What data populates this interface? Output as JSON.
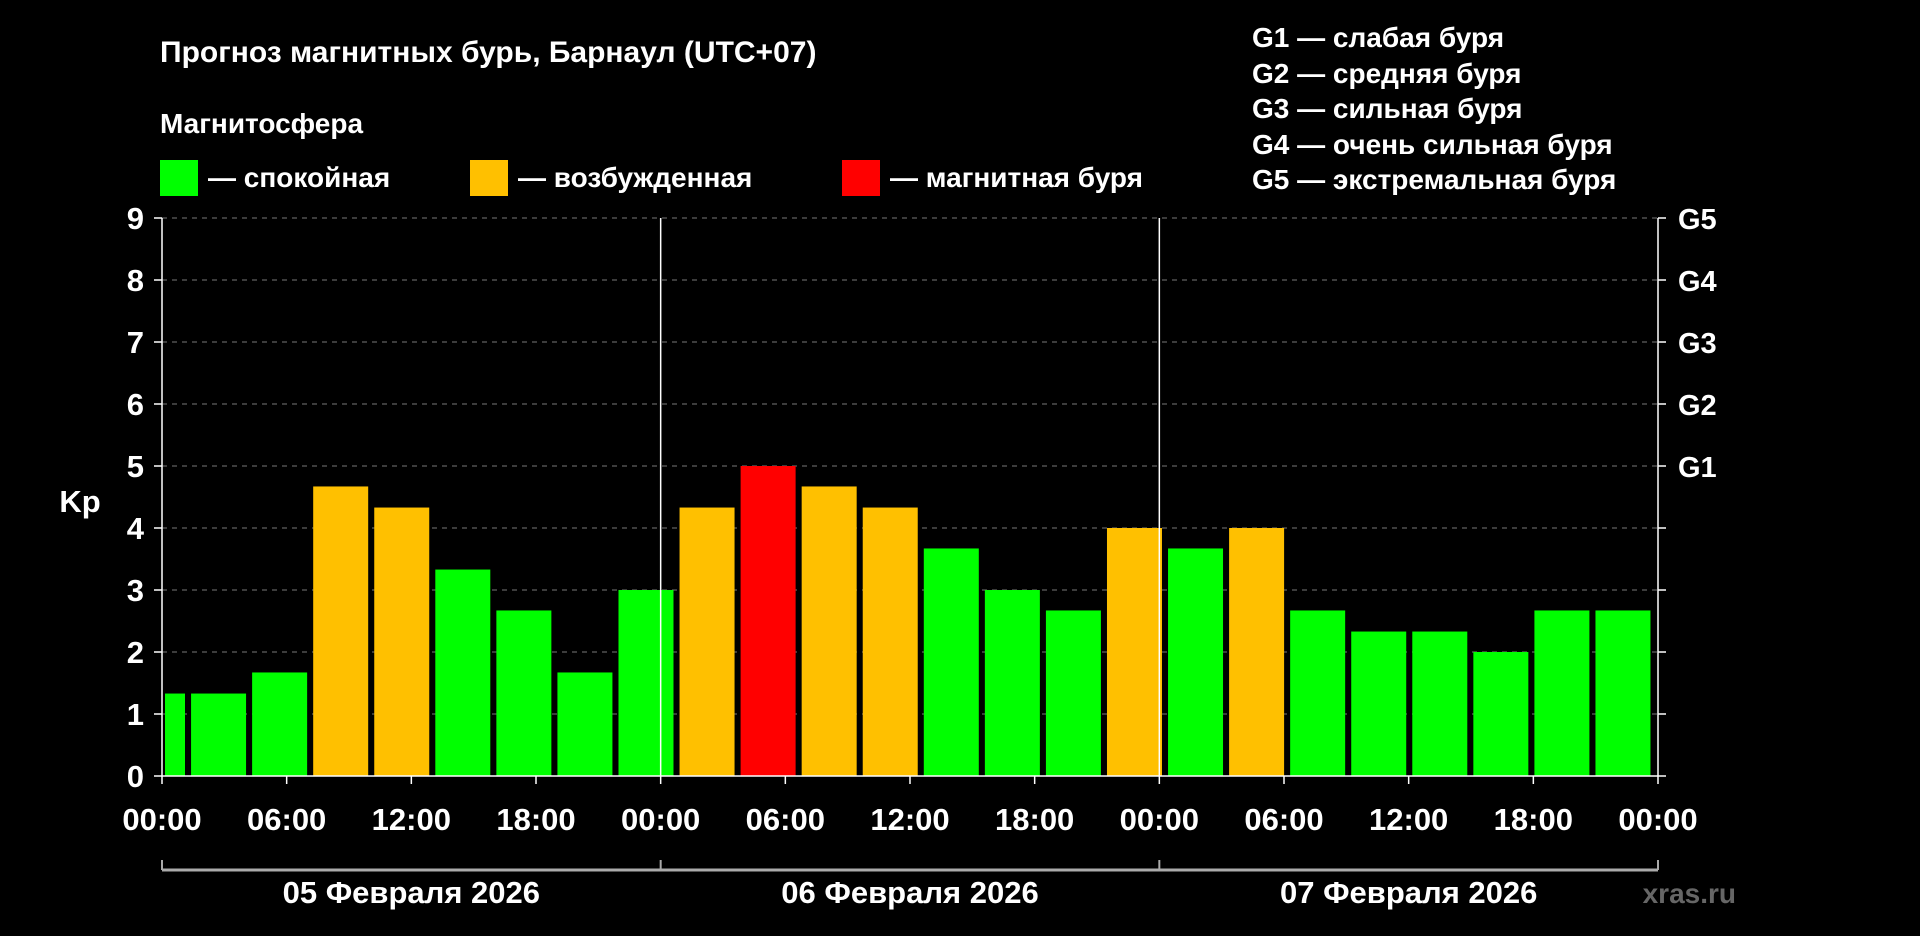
{
  "title": "Прогноз магнитных бурь, Барнаул (UTC+07)",
  "legend": {
    "heading": "Магнитосфера",
    "items": [
      {
        "label": "— спокойная",
        "color": "#00ff00"
      },
      {
        "label": "— возбужденная",
        "color": "#ffc000"
      },
      {
        "label": "— магнитная буря",
        "color": "#ff0000"
      }
    ]
  },
  "storm_scale": [
    "G1 — слабая буря",
    "G2 — средняя буря",
    "G3 — сильная буря",
    "G4 — очень сильная буря",
    "G5 — экстремальная буря"
  ],
  "watermark": "xras.ru",
  "chart_data": {
    "type": "bar",
    "title": "Прогноз магнитных бурь, Барнаул (UTC+07)",
    "ylabel": "Kp",
    "ylim": [
      0,
      9
    ],
    "yticks": [
      "0",
      "1",
      "2",
      "3",
      "4",
      "5",
      "6",
      "7",
      "8",
      "9"
    ],
    "right_ticks": [
      {
        "value": 5,
        "label": "G1"
      },
      {
        "value": 6,
        "label": "G2"
      },
      {
        "value": 7,
        "label": "G3"
      },
      {
        "value": 8,
        "label": "G4"
      },
      {
        "value": 9,
        "label": "G5"
      }
    ],
    "x_tick_labels": [
      "00:00",
      "06:00",
      "12:00",
      "18:00",
      "00:00",
      "06:00",
      "12:00",
      "18:00",
      "00:00",
      "06:00",
      "12:00",
      "18:00",
      "00:00"
    ],
    "days": [
      "05 Февраля 2026",
      "06 Февраля 2026",
      "07 Февраля 2026"
    ],
    "grid": true,
    "colors": {
      "calm": "#00ff00",
      "active": "#ffc000",
      "storm": "#ff0000"
    },
    "values": [
      1.33,
      1.33,
      1.67,
      4.67,
      4.33,
      3.33,
      2.67,
      1.67,
      3.0,
      4.33,
      5.0,
      4.67,
      4.33,
      3.67,
      3.0,
      2.67,
      4.0,
      3.67,
      4.0,
      2.67,
      2.33,
      2.33,
      2.0,
      2.67,
      2.67
    ],
    "levels": [
      "calm",
      "calm",
      "calm",
      "active",
      "active",
      "calm",
      "calm",
      "calm",
      "calm",
      "active",
      "storm",
      "active",
      "active",
      "calm",
      "calm",
      "calm",
      "active",
      "calm",
      "active",
      "calm",
      "calm",
      "calm",
      "calm",
      "calm",
      "calm"
    ]
  }
}
